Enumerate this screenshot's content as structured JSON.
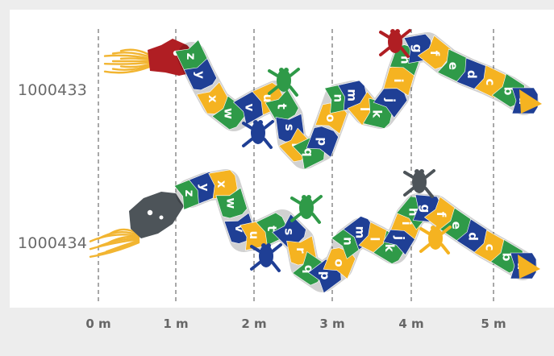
{
  "rows": [
    {
      "label": "1000433",
      "letters": [
        "z",
        "y",
        "x",
        "w",
        "v",
        "u",
        "t",
        "s",
        "r",
        "q",
        "p",
        "o",
        "n",
        "m",
        "l",
        "k",
        "j",
        "i",
        "h",
        "g",
        "f",
        "e",
        "d",
        "c",
        "b",
        "a"
      ],
      "head_color": "#b01e23",
      "head_label": "red-dragon"
    },
    {
      "label": "1000434",
      "letters": [
        "z",
        "y",
        "x",
        "w",
        "v",
        "u",
        "t",
        "s",
        "r",
        "q",
        "p",
        "o",
        "n",
        "m",
        "l",
        "k",
        "j",
        "i",
        "h",
        "g",
        "f",
        "e",
        "d",
        "c",
        "b",
        "a"
      ],
      "head_color": "#4d5459",
      "head_label": "grey-dragon"
    }
  ],
  "scale": {
    "ticks": [
      "0 m",
      "1 m",
      "2 m",
      "3 m",
      "4 m",
      "5 m"
    ],
    "unit": "m"
  },
  "colors": {
    "yellow": "#f5b321",
    "blue": "#1f3f95",
    "green": "#2f9a48",
    "white_text": "#ffffff",
    "flame": "#f2b531",
    "frog_green": "#2f9a48",
    "frog_blue": "#1f3f95"
  }
}
